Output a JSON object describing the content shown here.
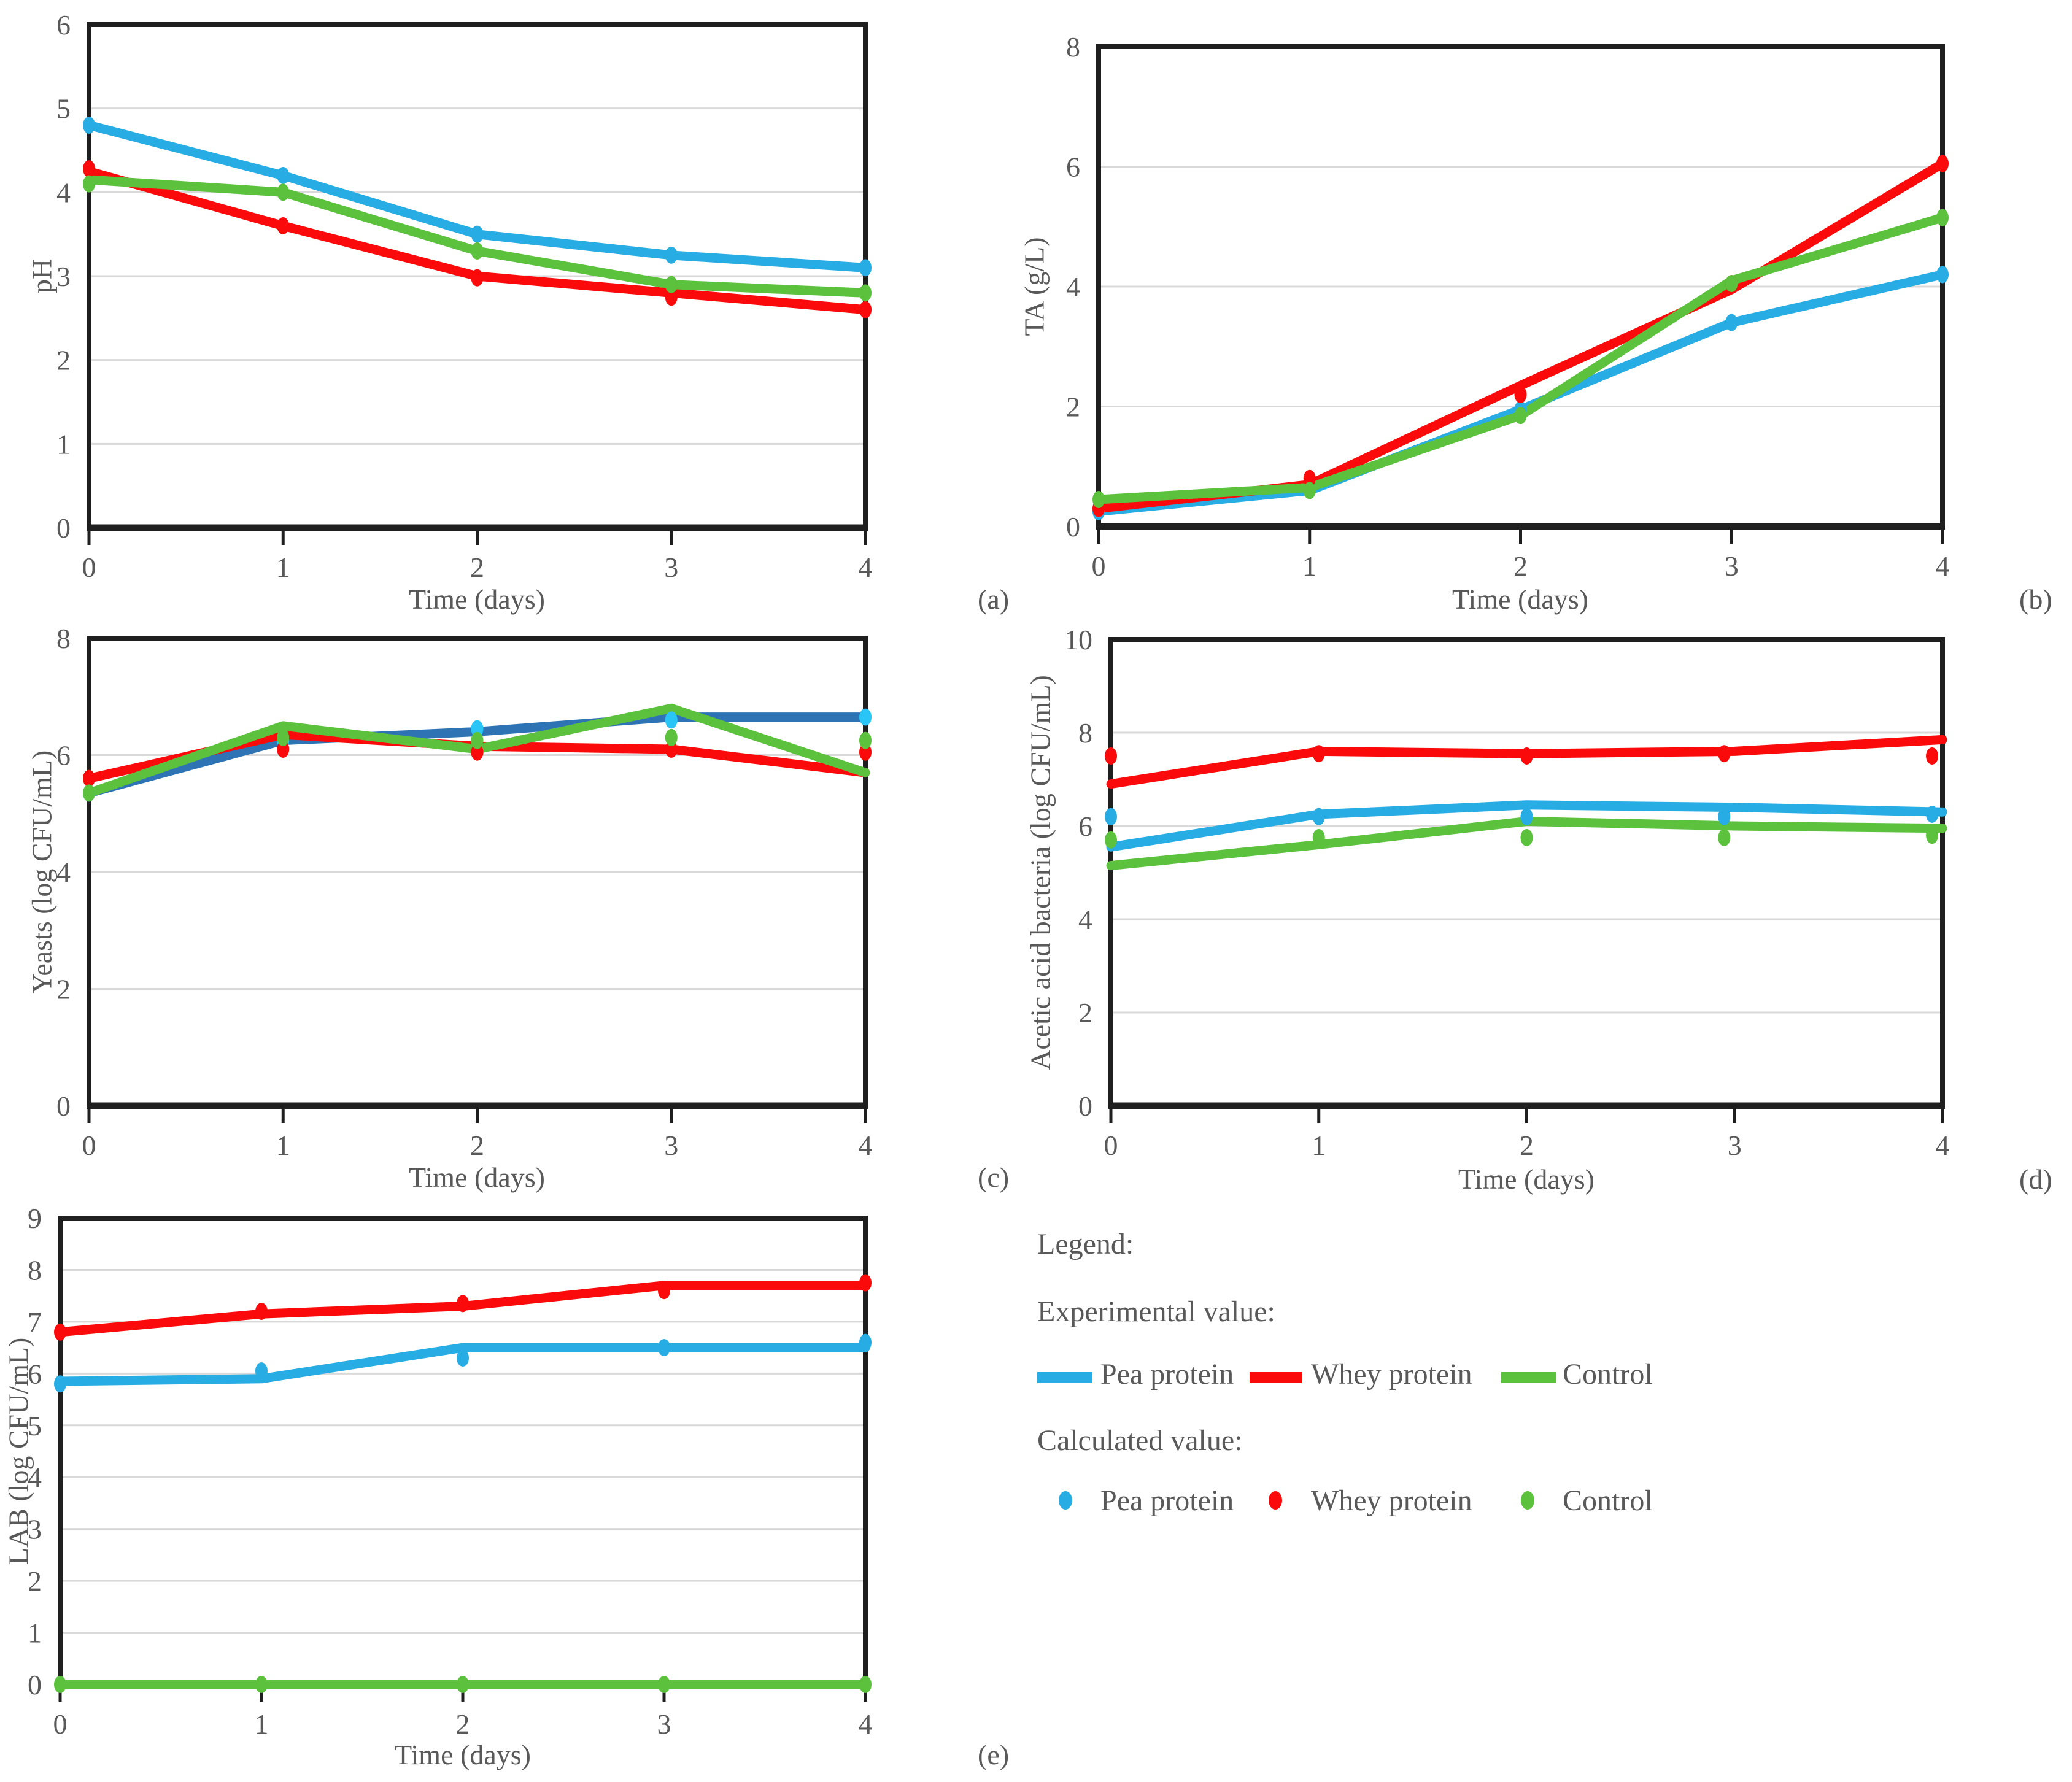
{
  "colors": {
    "pea_protein": "#27ACE3",
    "pea_protein_dark_line": "#2E74B5",
    "whey_protein": "#FA0A0A",
    "control": "#5CC23E",
    "grid": "#D9D9D9",
    "axis": "#1F1F1F",
    "text": "#595959"
  },
  "legend": {
    "title": "Legend:",
    "experimental_label": "Experimental value:",
    "calculated_label": "Calculated value:",
    "series": [
      {
        "label": "Pea protein",
        "color": "#27ACE3"
      },
      {
        "label": "Whey protein",
        "color": "#FA0A0A"
      },
      {
        "label": "Control",
        "color": "#5CC23E"
      }
    ]
  },
  "chart_data": [
    {
      "id": "ph",
      "panel_label": "(a)",
      "type": "line",
      "xlabel": "Time (days)",
      "ylabel": "pH",
      "xlim": [
        0,
        4
      ],
      "ylim": [
        0,
        6
      ],
      "xticks": [
        0,
        1,
        2,
        3,
        4
      ],
      "yticks": [
        0,
        1,
        2,
        3,
        4,
        5,
        6
      ],
      "x": [
        0,
        1,
        2,
        3,
        4
      ],
      "series": [
        {
          "name": "Pea protein",
          "role": "experimental",
          "style": "line",
          "color": "#27ACE3",
          "values": [
            4.8,
            4.2,
            3.5,
            3.25,
            3.1
          ]
        },
        {
          "name": "Whey protein",
          "role": "experimental",
          "style": "line",
          "color": "#FA0A0A",
          "values": [
            4.25,
            3.6,
            3.0,
            2.8,
            2.6
          ]
        },
        {
          "name": "Control",
          "role": "experimental",
          "style": "line",
          "color": "#5CC23E",
          "values": [
            4.15,
            4.0,
            3.3,
            2.9,
            2.8
          ]
        },
        {
          "name": "Pea protein",
          "role": "calculated",
          "style": "scatter",
          "color": "#27ACE3",
          "values": [
            4.8,
            4.2,
            3.5,
            3.25,
            3.1
          ]
        },
        {
          "name": "Whey protein",
          "role": "calculated",
          "style": "scatter",
          "color": "#FA0A0A",
          "values": [
            4.28,
            3.6,
            2.98,
            2.75,
            2.6
          ]
        },
        {
          "name": "Control",
          "role": "calculated",
          "style": "scatter",
          "color": "#5CC23E",
          "values": [
            4.1,
            4.0,
            3.3,
            2.9,
            2.8
          ]
        }
      ]
    },
    {
      "id": "ta",
      "panel_label": "(b)",
      "type": "line",
      "xlabel": "Time (days)",
      "ylabel": "TA (g/L)",
      "xlim": [
        0,
        4
      ],
      "ylim": [
        0,
        8
      ],
      "xticks": [
        0,
        1,
        2,
        3,
        4
      ],
      "yticks": [
        0,
        2,
        4,
        6,
        8
      ],
      "x": [
        0,
        1,
        2,
        3,
        4
      ],
      "series": [
        {
          "name": "Pea protein",
          "role": "experimental",
          "style": "line",
          "color": "#27ACE3",
          "values": [
            0.25,
            0.6,
            1.95,
            3.4,
            4.2
          ]
        },
        {
          "name": "Whey protein",
          "role": "experimental",
          "style": "line",
          "color": "#FA0A0A",
          "values": [
            0.3,
            0.7,
            2.35,
            3.95,
            6.05
          ]
        },
        {
          "name": "Control",
          "role": "experimental",
          "style": "line",
          "color": "#5CC23E",
          "values": [
            0.45,
            0.65,
            1.85,
            4.1,
            5.15
          ]
        },
        {
          "name": "Pea protein",
          "role": "calculated",
          "style": "scatter",
          "color": "#27ACE3",
          "values": [
            0.25,
            0.6,
            1.95,
            3.4,
            4.2
          ]
        },
        {
          "name": "Whey protein",
          "role": "calculated",
          "style": "scatter",
          "color": "#FA0A0A",
          "values": [
            0.3,
            0.8,
            2.2,
            4.05,
            6.05
          ]
        },
        {
          "name": "Control",
          "role": "calculated",
          "style": "scatter",
          "color": "#5CC23E",
          "values": [
            0.45,
            0.6,
            1.85,
            4.05,
            5.15
          ]
        }
      ]
    },
    {
      "id": "yeasts",
      "panel_label": "(c)",
      "type": "line",
      "xlabel": "Time (days)",
      "ylabel": "Yeasts (log CFU/mL)",
      "xlim": [
        0,
        4
      ],
      "ylim": [
        0,
        8
      ],
      "xticks": [
        0,
        1,
        2,
        3,
        4
      ],
      "yticks": [
        0,
        2,
        4,
        6,
        8
      ],
      "x": [
        0,
        1,
        2,
        3,
        4
      ],
      "series": [
        {
          "name": "Pea protein",
          "role": "experimental",
          "style": "line",
          "color": "#2E74B5",
          "values": [
            5.35,
            6.25,
            6.4,
            6.65,
            6.65
          ]
        },
        {
          "name": "Whey protein",
          "role": "experimental",
          "style": "line",
          "color": "#FA0A0A",
          "values": [
            5.6,
            6.35,
            6.15,
            6.1,
            5.7
          ]
        },
        {
          "name": "Control",
          "role": "experimental",
          "style": "line",
          "color": "#5CC23E",
          "values": [
            5.35,
            6.5,
            6.1,
            6.8,
            5.7
          ]
        },
        {
          "name": "Pea protein",
          "role": "calculated",
          "style": "scatter",
          "color": "#29C5F6",
          "values": [
            5.35,
            6.25,
            6.45,
            6.6,
            6.65
          ]
        },
        {
          "name": "Whey protein",
          "role": "calculated",
          "style": "scatter",
          "color": "#FA0A0A",
          "values": [
            5.6,
            6.1,
            6.05,
            6.1,
            6.05
          ]
        },
        {
          "name": "Control",
          "role": "calculated",
          "style": "scatter",
          "color": "#5CC23E",
          "values": [
            5.35,
            6.3,
            6.25,
            6.3,
            6.25
          ]
        }
      ]
    },
    {
      "id": "aab",
      "panel_label": "(d)",
      "type": "line",
      "xlabel": "Time (days)",
      "ylabel": "Acetic acid bacteria (log CFU/mL)",
      "xlim": [
        0,
        4
      ],
      "ylim": [
        0,
        10
      ],
      "xticks": [
        0,
        1,
        2,
        3,
        4
      ],
      "yticks": [
        0,
        2,
        4,
        6,
        8,
        10
      ],
      "x": [
        0,
        1,
        2,
        3,
        4
      ],
      "series": [
        {
          "name": "Pea protein",
          "role": "experimental",
          "style": "line",
          "color": "#27ACE3",
          "values": [
            5.55,
            6.25,
            6.45,
            6.4,
            6.3
          ]
        },
        {
          "name": "Whey protein",
          "role": "experimental",
          "style": "line",
          "color": "#FA0A0A",
          "values": [
            6.9,
            7.6,
            7.55,
            7.6,
            7.85
          ]
        },
        {
          "name": "Control",
          "role": "experimental",
          "style": "line",
          "color": "#5CC23E",
          "values": [
            5.15,
            5.6,
            6.1,
            6.0,
            5.95
          ]
        },
        {
          "name": "Pea protein",
          "role": "calculated",
          "style": "scatter",
          "color": "#27ACE3",
          "x": [
            0,
            1,
            2,
            2.95,
            3.95
          ],
          "values": [
            6.2,
            6.2,
            6.2,
            6.2,
            6.25
          ]
        },
        {
          "name": "Whey protein",
          "role": "calculated",
          "style": "scatter",
          "color": "#FA0A0A",
          "x": [
            0,
            1,
            2,
            2.95,
            3.95
          ],
          "values": [
            7.5,
            7.55,
            7.5,
            7.55,
            7.5
          ]
        },
        {
          "name": "Control",
          "role": "calculated",
          "style": "scatter",
          "color": "#5CC23E",
          "x": [
            0,
            1,
            2,
            2.95,
            3.95
          ],
          "values": [
            5.7,
            5.75,
            5.75,
            5.75,
            5.8
          ]
        }
      ]
    },
    {
      "id": "lab",
      "panel_label": "(e)",
      "type": "line",
      "xlabel": "Time (days)",
      "ylabel": "LAB (log CFU/mL)",
      "xlim": [
        0,
        4
      ],
      "ylim": [
        0,
        9
      ],
      "xticks": [
        0,
        1,
        2,
        3,
        4
      ],
      "yticks": [
        0,
        1,
        2,
        3,
        4,
        5,
        6,
        7,
        8,
        9
      ],
      "x": [
        0,
        1,
        2,
        3,
        4
      ],
      "series": [
        {
          "name": "Pea protein",
          "role": "experimental",
          "style": "line",
          "color": "#27ACE3",
          "values": [
            5.85,
            5.9,
            6.5,
            6.5,
            6.5
          ]
        },
        {
          "name": "Whey protein",
          "role": "experimental",
          "style": "line",
          "color": "#FA0A0A",
          "values": [
            6.8,
            7.15,
            7.3,
            7.7,
            7.7
          ]
        },
        {
          "name": "Control",
          "role": "experimental",
          "style": "line",
          "color": "#5CC23E",
          "values": [
            0,
            0,
            0,
            0,
            0
          ]
        },
        {
          "name": "Pea protein",
          "role": "calculated",
          "style": "scatter",
          "color": "#27ACE3",
          "values": [
            5.8,
            6.05,
            6.3,
            6.5,
            6.6
          ]
        },
        {
          "name": "Whey protein",
          "role": "calculated",
          "style": "scatter",
          "color": "#FA0A0A",
          "values": [
            6.8,
            7.2,
            7.35,
            7.6,
            7.75
          ]
        },
        {
          "name": "Control",
          "role": "calculated",
          "style": "scatter",
          "color": "#5CC23E",
          "values": [
            0,
            0,
            0,
            0,
            0
          ]
        }
      ]
    }
  ]
}
